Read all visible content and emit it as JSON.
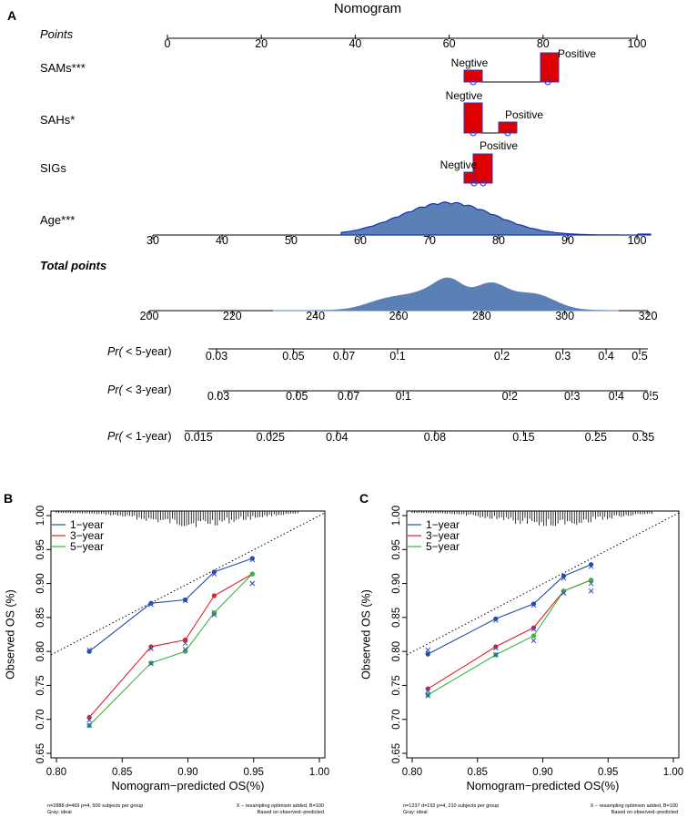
{
  "colors": {
    "box_fill": "#e00000",
    "box_stroke": "#3030c0",
    "density_fill": "#5b80b5",
    "density_stroke": "#1a2fb8",
    "line_1year": "#1f4e9c",
    "line_3year": "#e0202a",
    "line_5year": "#3cb43c",
    "cross_marker": "#3050d0"
  },
  "chart_data": [
    {
      "type": "nomogram",
      "panel": "A",
      "title": "Nomogram",
      "rows": [
        {
          "label": "Points",
          "style": "italic",
          "scale": {
            "min": 0,
            "max": 100,
            "ticks": [
              0,
              20,
              40,
              60,
              80,
              100
            ]
          }
        },
        {
          "label": "SAMs***",
          "categories": [
            {
              "name": "Negtive",
              "points": 65,
              "proportion": 0.33
            },
            {
              "name": "Positive",
              "points": 81,
              "proportion": 0.67
            }
          ]
        },
        {
          "label": "SAHs*",
          "categories": [
            {
              "name": "Negtive",
              "points": 65,
              "proportion": 0.75
            },
            {
              "name": "Positive",
              "points": 72,
              "proportion": 0.25
            }
          ]
        },
        {
          "label": "SIGs",
          "categories": [
            {
              "name": "Negtive",
              "points": 65,
              "proportion": 0.25
            },
            {
              "name": "Positive",
              "points": 68,
              "proportion": 0.75
            }
          ]
        },
        {
          "label": "Age***",
          "type": "density",
          "scale": {
            "min": 30,
            "max": 100,
            "ticks": [
              30,
              40,
              50,
              60,
              70,
              80,
              90,
              100
            ]
          }
        },
        {
          "label": "Total points",
          "style": "bold-italic",
          "type": "density",
          "scale": {
            "min": 200,
            "max": 320,
            "ticks": [
              200,
              220,
              240,
              260,
              280,
              300,
              320
            ]
          }
        },
        {
          "label": "Pr( < 5-year)",
          "ticks": [
            "0.03",
            "0.05",
            "0.07",
            "0.1",
            "0.2",
            "0.3",
            "0.4",
            "0.5"
          ],
          "tick_values": [
            0.03,
            0.05,
            0.07,
            0.1,
            0.2,
            0.3,
            0.4,
            0.5
          ]
        },
        {
          "label": "Pr( < 3-year)",
          "ticks": [
            "0.03",
            "0.05",
            "0.07",
            "0.1",
            "0.2",
            "0.3",
            "0.4",
            "0.5"
          ],
          "tick_values": [
            0.03,
            0.05,
            0.07,
            0.1,
            0.2,
            0.3,
            0.4,
            0.5
          ]
        },
        {
          "label": "Pr( < 1-year)",
          "ticks": [
            "0.015",
            "0.025",
            "0.04",
            "0.08",
            "0.15",
            "0.25",
            "0.35"
          ],
          "tick_values": [
            0.015,
            0.025,
            0.04,
            0.08,
            0.15,
            0.25,
            0.35
          ]
        }
      ]
    },
    {
      "type": "line",
      "panel": "B",
      "xlabel": "Nomogram−predicted OS(%)",
      "ylabel": "Observed OS (%)",
      "xlim": [
        0.8,
        1.0
      ],
      "ylim": [
        0.65,
        1.0
      ],
      "xticks": [
        "0.80",
        "0.85",
        "0.90",
        "0.95",
        "1.00"
      ],
      "yticks": [
        "0.65",
        "0.70",
        "0.75",
        "0.80",
        "0.85",
        "0.90",
        "0.95",
        "1.00"
      ],
      "legend": [
        "1−year",
        "3−year",
        "5−year"
      ],
      "series": [
        {
          "name": "1−year",
          "x": [
            0.825,
            0.872,
            0.898,
            0.92,
            0.949
          ],
          "y": [
            0.8,
            0.871,
            0.876,
            0.917,
            0.937
          ],
          "cross": [
            0.802,
            0.869,
            0.875,
            0.914,
            0.935
          ]
        },
        {
          "name": "3−year",
          "x": [
            0.825,
            0.872,
            0.898,
            0.92,
            0.949
          ],
          "y": [
            0.703,
            0.807,
            0.817,
            0.882,
            0.914
          ],
          "cross": [
            0.699,
            0.804,
            0.812,
            0.857,
            0.9
          ]
        },
        {
          "name": "5−year",
          "x": [
            0.825,
            0.872,
            0.898,
            0.92,
            0.949
          ],
          "y": [
            0.691,
            0.783,
            0.8,
            0.857,
            0.914
          ],
          "cross": [
            0.691,
            0.782,
            0.803,
            0.854,
            0.9
          ]
        }
      ],
      "footnote_left": [
        "n=2888 d=469 p=4, 500 subjects per group",
        "Gray: ideal"
      ],
      "footnote_right": [
        "X − resampling optimism added, B=100",
        "Based on observed−predicted"
      ]
    },
    {
      "type": "line",
      "panel": "C",
      "xlabel": "Nomogram−predicted OS(%)",
      "ylabel": "Observed OS (%)",
      "xlim": [
        0.8,
        1.0
      ],
      "ylim": [
        0.65,
        1.0
      ],
      "xticks": [
        "0.80",
        "0.85",
        "0.90",
        "0.95",
        "1.00"
      ],
      "yticks": [
        "0.65",
        "0.70",
        "0.75",
        "0.80",
        "0.85",
        "0.90",
        "0.95",
        "1.00"
      ],
      "legend": [
        "1−year",
        "3−year",
        "5−year"
      ],
      "series": [
        {
          "name": "1−year",
          "x": [
            0.812,
            0.864,
            0.893,
            0.916,
            0.937
          ],
          "y": [
            0.796,
            0.848,
            0.87,
            0.911,
            0.928
          ],
          "cross": [
            0.802,
            0.846,
            0.868,
            0.908,
            0.925
          ]
        },
        {
          "name": "3−year",
          "x": [
            0.812,
            0.864,
            0.893,
            0.916,
            0.937
          ],
          "y": [
            0.745,
            0.807,
            0.835,
            0.889,
            0.905
          ],
          "cross": [
            0.742,
            0.805,
            0.833,
            0.886,
            0.889
          ]
        },
        {
          "name": "5−year",
          "x": [
            0.812,
            0.864,
            0.893,
            0.916,
            0.937
          ],
          "y": [
            0.736,
            0.795,
            0.823,
            0.889,
            0.905
          ],
          "cross": [
            0.735,
            0.795,
            0.816,
            0.886,
            0.9
          ]
        }
      ],
      "footnote_left": [
        "n=1237 d=192 p=4, 210 subjects per group",
        "Gray: ideal"
      ],
      "footnote_right": [
        "X − resampling optimism added, B=100",
        "Based on observed−predicted"
      ]
    }
  ]
}
